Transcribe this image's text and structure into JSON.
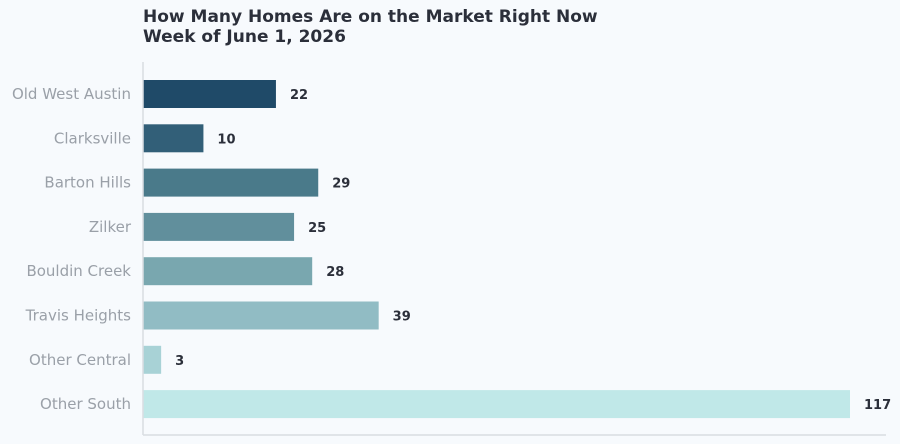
{
  "chart_data": {
    "type": "bar",
    "orientation": "horizontal",
    "title": "How Many Homes Are on the Market Right Now",
    "subtitle": "Week of June 1, 2026",
    "categories": [
      "Old West Austin",
      "Clarksville",
      "Barton Hills",
      "Zilker",
      "Bouldin Creek",
      "Travis Heights",
      "Other Central",
      "Other South"
    ],
    "values": [
      22,
      10,
      29,
      25,
      28,
      39,
      3,
      117
    ],
    "colors": [
      "#1f4a68",
      "#325f78",
      "#4a7a8a",
      "#618f9c",
      "#79a7af",
      "#91bcc4",
      "#a8d2d6",
      "#c0e8e8"
    ],
    "xlim": [
      0,
      117
    ],
    "grid": false,
    "legend": "none",
    "xlabel": "",
    "ylabel": ""
  }
}
